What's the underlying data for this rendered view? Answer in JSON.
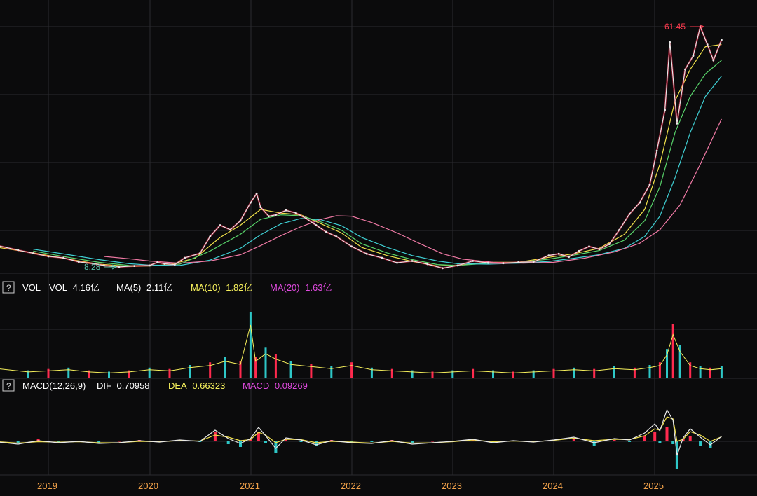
{
  "colors": {
    "background": "#0b0b0c",
    "grid": "#2b2b2f",
    "axis_text": "#f2a24a",
    "price": "#e9e9e9",
    "ma_short": "#f0e04a",
    "ma_mid": "#58d36a",
    "ma_long": "#3fd0d4",
    "ma_year": "#f07aa5",
    "up": "#ff2a4e",
    "down": "#2ec7c7",
    "vol_header": "#ffffff",
    "ma10_header": "#f6f05c",
    "ma20_header": "#e04adf",
    "low_marker": "#58c0a8",
    "high_marker": "#ff3b4f"
  },
  "price_panel": {
    "high_label": "61.45",
    "low_label": "8.28"
  },
  "vol_header": {
    "icon": "question-icon",
    "title": "VOL",
    "vol": "VOL=4.16亿",
    "ma5": "MA(5)=2.11亿",
    "ma10": "MA(10)=1.82亿",
    "ma20": "MA(20)=1.63亿"
  },
  "macd_header": {
    "icon": "question-icon",
    "title": "MACD(12,26,9)",
    "dif": "DIF=0.70958",
    "dea": "DEA=0.66323",
    "macd": "MACD=0.09269"
  },
  "chart_data": {
    "type": "line",
    "x_axis_labels": [
      "2019",
      "2020",
      "2021",
      "2022",
      "2023",
      "2024",
      "2025"
    ],
    "price": {
      "x": [
        2018.5,
        2018.7,
        2018.85,
        2019.0,
        2019.15,
        2019.3,
        2019.45,
        2019.55,
        2019.7,
        2019.85,
        2020.0,
        2020.08,
        2020.15,
        2020.25,
        2020.35,
        2020.5,
        2020.6,
        2020.7,
        2020.8,
        2020.9,
        2021.0,
        2021.06,
        2021.1,
        2021.18,
        2021.25,
        2021.35,
        2021.45,
        2021.55,
        2021.65,
        2021.75,
        2021.85,
        2022.0,
        2022.15,
        2022.3,
        2022.45,
        2022.6,
        2022.75,
        2022.9,
        2023.05,
        2023.2,
        2023.35,
        2023.5,
        2023.65,
        2023.8,
        2023.95,
        2024.05,
        2024.15,
        2024.25,
        2024.35,
        2024.45,
        2024.55,
        2024.65,
        2024.75,
        2024.85,
        2024.95,
        2025.02,
        2025.1,
        2025.15,
        2025.22,
        2025.3,
        2025.38,
        2025.45,
        2025.52,
        2025.58,
        2025.66
      ],
      "y": [
        13.0,
        12.0,
        11.3,
        10.6,
        10.3,
        9.4,
        9.0,
        8.6,
        8.3,
        8.5,
        8.6,
        9.3,
        9.0,
        8.8,
        10.3,
        11.3,
        15.0,
        17.5,
        16.5,
        18.5,
        22.5,
        24.5,
        21.5,
        19.5,
        19.8,
        20.8,
        20.2,
        19.0,
        17.5,
        16.0,
        15.0,
        12.8,
        11.2,
        10.3,
        9.2,
        9.6,
        8.9,
        8.0,
        8.6,
        9.6,
        9.2,
        9.1,
        9.3,
        9.4,
        10.8,
        11.2,
        10.5,
        11.8,
        12.8,
        12.2,
        13.3,
        16.5,
        20.0,
        22.5,
        26.5,
        34.0,
        43.0,
        58.0,
        40.0,
        52.0,
        55.0,
        61.45,
        57.5,
        54.0,
        58.5
      ]
    },
    "series": [
      {
        "x": [
          2018.5,
          2018.85,
          2019.2,
          2019.5,
          2019.8,
          2020.0,
          2020.2,
          2020.45,
          2020.7,
          2020.9,
          2021.1,
          2021.3,
          2021.5,
          2021.7,
          2021.9,
          2022.1,
          2022.35,
          2022.6,
          2022.85,
          2023.05,
          2023.35,
          2023.65,
          2023.95,
          2024.2,
          2024.45,
          2024.7,
          2024.9,
          2025.05,
          2025.2,
          2025.35,
          2025.5,
          2025.66
        ],
        "y": [
          12.6,
          11.4,
          10.0,
          8.9,
          8.4,
          8.5,
          8.8,
          10.2,
          14.8,
          17.5,
          21.0,
          20.2,
          19.8,
          17.8,
          15.8,
          12.6,
          10.8,
          9.5,
          8.5,
          8.7,
          9.3,
          9.3,
          10.4,
          11.2,
          12.4,
          15.5,
          21.0,
          31.0,
          45.0,
          52.0,
          57.0,
          57.5
        ]
      },
      {
        "x": [
          2018.85,
          2019.2,
          2019.5,
          2019.8,
          2020.0,
          2020.3,
          2020.6,
          2020.9,
          2021.1,
          2021.3,
          2021.5,
          2021.7,
          2021.9,
          2022.1,
          2022.35,
          2022.6,
          2022.85,
          2023.05,
          2023.35,
          2023.65,
          2023.95,
          2024.2,
          2024.45,
          2024.7,
          2024.9,
          2025.05,
          2025.2,
          2025.35,
          2025.5,
          2025.66
        ],
        "y": [
          11.8,
          10.4,
          9.3,
          8.6,
          8.5,
          8.9,
          11.8,
          15.5,
          18.8,
          19.8,
          19.6,
          18.2,
          16.4,
          13.4,
          11.4,
          9.9,
          8.8,
          8.6,
          9.1,
          9.3,
          10.0,
          10.9,
          11.9,
          14.2,
          18.5,
          26.0,
          38.0,
          46.0,
          51.0,
          54.0
        ]
      },
      {
        "x": [
          2018.85,
          2019.2,
          2019.5,
          2019.8,
          2020.0,
          2020.3,
          2020.6,
          2020.9,
          2021.1,
          2021.3,
          2021.5,
          2021.7,
          2021.9,
          2022.1,
          2022.35,
          2022.6,
          2022.85,
          2023.05,
          2023.35,
          2023.65,
          2023.95,
          2024.2,
          2024.45,
          2024.7,
          2024.9,
          2025.05,
          2025.2,
          2025.35,
          2025.5,
          2025.66
        ],
        "y": [
          12.2,
          11.0,
          9.9,
          9.0,
          8.7,
          8.6,
          9.8,
          12.4,
          15.4,
          17.8,
          19.0,
          18.7,
          17.4,
          14.8,
          12.6,
          10.8,
          9.6,
          9.0,
          8.9,
          9.1,
          9.5,
          10.2,
          11.0,
          12.4,
          15.0,
          19.5,
          28.0,
          38.0,
          46.0,
          50.5
        ]
      },
      {
        "x": [
          2019.55,
          2019.8,
          2020.0,
          2020.3,
          2020.6,
          2020.9,
          2021.1,
          2021.3,
          2021.5,
          2021.7,
          2021.85,
          2022.0,
          2022.2,
          2022.45,
          2022.7,
          2022.9,
          2023.1,
          2023.4,
          2023.7,
          2024.0,
          2024.3,
          2024.6,
          2024.85,
          2025.05,
          2025.25,
          2025.45,
          2025.66
        ],
        "y": [
          10.6,
          10.1,
          9.6,
          9.1,
          9.6,
          11.0,
          13.0,
          15.2,
          17.2,
          18.8,
          19.6,
          19.5,
          18.1,
          15.8,
          13.2,
          11.2,
          10.0,
          9.3,
          9.1,
          9.3,
          10.2,
          11.6,
          13.5,
          16.5,
          22.0,
          31.0,
          41.0
        ]
      }
    ],
    "volume": {
      "x": [
        2018.5,
        2018.8,
        2019.0,
        2019.2,
        2019.4,
        2019.6,
        2019.8,
        2020.0,
        2020.2,
        2020.4,
        2020.6,
        2020.75,
        2020.9,
        2021.0,
        2021.05,
        2021.15,
        2021.25,
        2021.4,
        2021.6,
        2021.8,
        2022.0,
        2022.2,
        2022.4,
        2022.6,
        2022.8,
        2023.0,
        2023.2,
        2023.4,
        2023.6,
        2023.8,
        2024.0,
        2024.2,
        2024.4,
        2024.6,
        2024.8,
        2024.95,
        2025.05,
        2025.12,
        2025.18,
        2025.25,
        2025.35,
        2025.45,
        2025.55,
        2025.66
      ],
      "y": [
        0.9,
        0.6,
        0.7,
        0.8,
        0.6,
        0.5,
        0.6,
        0.8,
        0.7,
        1.0,
        1.2,
        1.6,
        1.3,
        5.0,
        1.6,
        2.3,
        1.8,
        1.3,
        1.1,
        0.9,
        1.2,
        0.8,
        0.7,
        0.6,
        0.5,
        0.6,
        0.7,
        0.6,
        0.5,
        0.6,
        0.7,
        0.8,
        0.7,
        0.9,
        0.8,
        1.0,
        1.2,
        2.2,
        4.1,
        2.5,
        1.2,
        0.9,
        0.8,
        0.9
      ]
    },
    "macd": {
      "x": [
        2018.5,
        2018.7,
        2018.9,
        2019.1,
        2019.3,
        2019.5,
        2019.7,
        2019.9,
        2020.1,
        2020.3,
        2020.5,
        2020.65,
        2020.78,
        2020.9,
        2021.0,
        2021.08,
        2021.15,
        2021.25,
        2021.35,
        2021.5,
        2021.65,
        2021.8,
        2022.0,
        2022.2,
        2022.4,
        2022.6,
        2022.8,
        2023.0,
        2023.2,
        2023.4,
        2023.6,
        2023.8,
        2024.0,
        2024.2,
        2024.4,
        2024.6,
        2024.75,
        2024.9,
        2025.0,
        2025.05,
        2025.12,
        2025.18,
        2025.22,
        2025.28,
        2025.35,
        2025.45,
        2025.55,
        2025.66
      ],
      "dif": [
        -0.1,
        -0.4,
        0.1,
        -0.2,
        0.0,
        -0.3,
        -0.2,
        0.1,
        -0.1,
        0.2,
        0.0,
        1.6,
        0.4,
        -0.3,
        0.4,
        2.0,
        0.8,
        -1.0,
        0.5,
        0.2,
        -0.5,
        0.1,
        -0.2,
        -0.3,
        0.1,
        -0.4,
        -0.2,
        0.0,
        0.3,
        -0.2,
        0.1,
        -0.1,
        0.2,
        0.6,
        -0.2,
        0.4,
        0.2,
        1.2,
        2.5,
        1.5,
        4.5,
        3.0,
        -2.0,
        0.5,
        1.8,
        0.6,
        -0.5,
        0.7
      ],
      "dea": [
        -0.05,
        -0.25,
        -0.05,
        -0.12,
        -0.05,
        -0.2,
        -0.18,
        0.0,
        -0.05,
        0.1,
        0.05,
        0.9,
        0.6,
        0.1,
        0.25,
        1.3,
        0.9,
        -0.2,
        0.3,
        0.25,
        -0.2,
        0.0,
        -0.1,
        -0.25,
        0.0,
        -0.25,
        -0.2,
        -0.05,
        0.2,
        -0.05,
        0.05,
        -0.05,
        0.15,
        0.45,
        0.1,
        0.3,
        0.25,
        0.8,
        1.8,
        1.6,
        3.5,
        3.2,
        0.0,
        0.3,
        1.4,
        0.9,
        0.0,
        0.66
      ],
      "hist": [
        -0.1,
        -0.3,
        0.3,
        -0.2,
        0.1,
        -0.2,
        0.0,
        0.2,
        -0.1,
        0.2,
        -0.1,
        1.4,
        -0.4,
        -0.8,
        0.3,
        1.4,
        -0.2,
        -1.6,
        0.4,
        -0.1,
        -0.6,
        0.2,
        -0.2,
        -0.1,
        0.2,
        -0.3,
        0.0,
        0.1,
        0.2,
        -0.3,
        0.1,
        -0.1,
        0.1,
        0.3,
        -0.6,
        0.2,
        -0.1,
        0.8,
        1.4,
        -0.2,
        2.0,
        -0.4,
        -4.0,
        0.4,
        0.8,
        -0.6,
        -1.0,
        0.09
      ]
    }
  }
}
